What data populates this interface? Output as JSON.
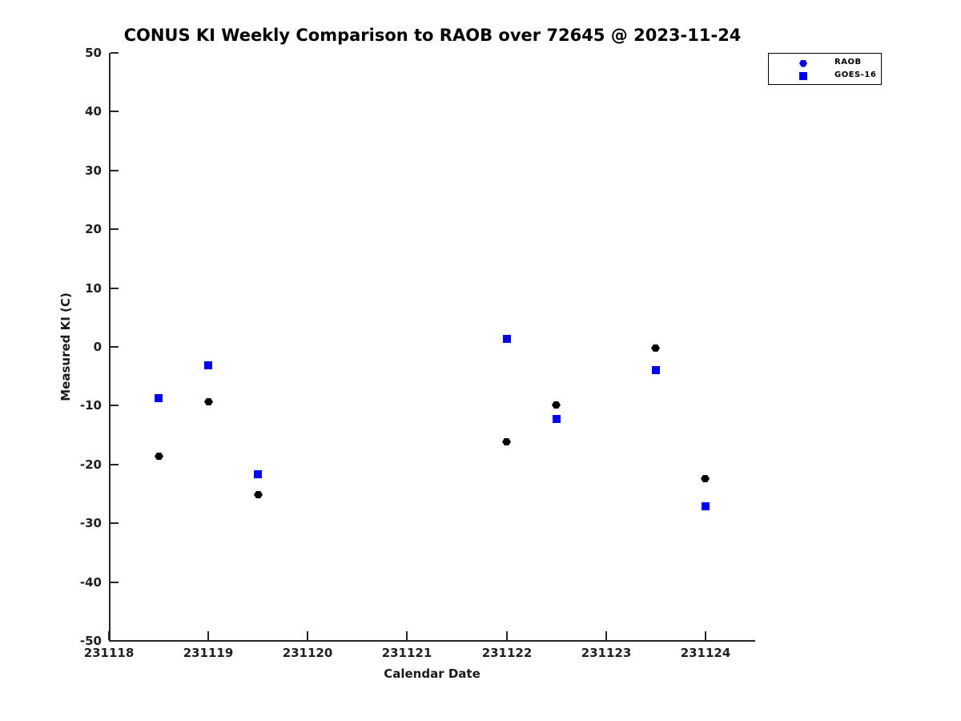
{
  "title": "CONUS KI Weekly Comparison to RAOB over 72645 @ 2023-11-24",
  "colors": {
    "raob_plot_marker": "#000000",
    "goes16_marker": "#0000EE",
    "legend_marker": "#0000EE",
    "axis": "#262626",
    "text": "#1a1a1a",
    "background": "#ffffff"
  },
  "legend": {
    "items": [
      {
        "label": "RAOB",
        "marker": "hexagon",
        "color": "#0000EE"
      },
      {
        "label": "GOES-16",
        "marker": "square",
        "color": "#0000EE"
      }
    ]
  },
  "chart_data": {
    "type": "scatter",
    "title": "CONUS KI Weekly Comparison to RAOB over 72645 @ 2023-11-24",
    "xlabel": "Calendar Date",
    "ylabel": "Measured KI (C)",
    "xlim": [
      231118,
      231124.5
    ],
    "ylim": [
      -50,
      50
    ],
    "x_ticks": [
      231118,
      231119,
      231120,
      231121,
      231122,
      231123,
      231124
    ],
    "x_tick_labels": [
      "231118",
      "231119",
      "231120",
      "231121",
      "231122",
      "231123",
      "231124"
    ],
    "y_ticks": [
      50,
      40,
      30,
      20,
      10,
      0,
      -10,
      -20,
      -30,
      -40,
      -50
    ],
    "y_tick_labels": [
      "50",
      "40",
      "30",
      "20",
      "10",
      "0",
      "-10",
      "-20",
      "-30",
      "-40",
      "-50"
    ],
    "grid": false,
    "legend_position": "upper right, outside plot top-right",
    "series": [
      {
        "name": "RAOB",
        "marker": "hexagon",
        "plot_color": "#000000",
        "legend_color": "#0000EE",
        "x": [
          231118.5,
          231119,
          231119.5,
          231122,
          231122.5,
          231123.5,
          231124
        ],
        "y": [
          -18.6,
          -9.3,
          -25.2,
          -16.1,
          -9.9,
          -0.2,
          -22.4
        ]
      },
      {
        "name": "GOES-16",
        "marker": "square",
        "plot_color": "#0000EE",
        "legend_color": "#0000EE",
        "x": [
          231118.5,
          231119,
          231119.5,
          231122,
          231122.5,
          231123.5,
          231124
        ],
        "y": [
          -8.7,
          -3.2,
          -21.6,
          1.3,
          -12.2,
          -4.0,
          -27.1
        ]
      }
    ]
  }
}
